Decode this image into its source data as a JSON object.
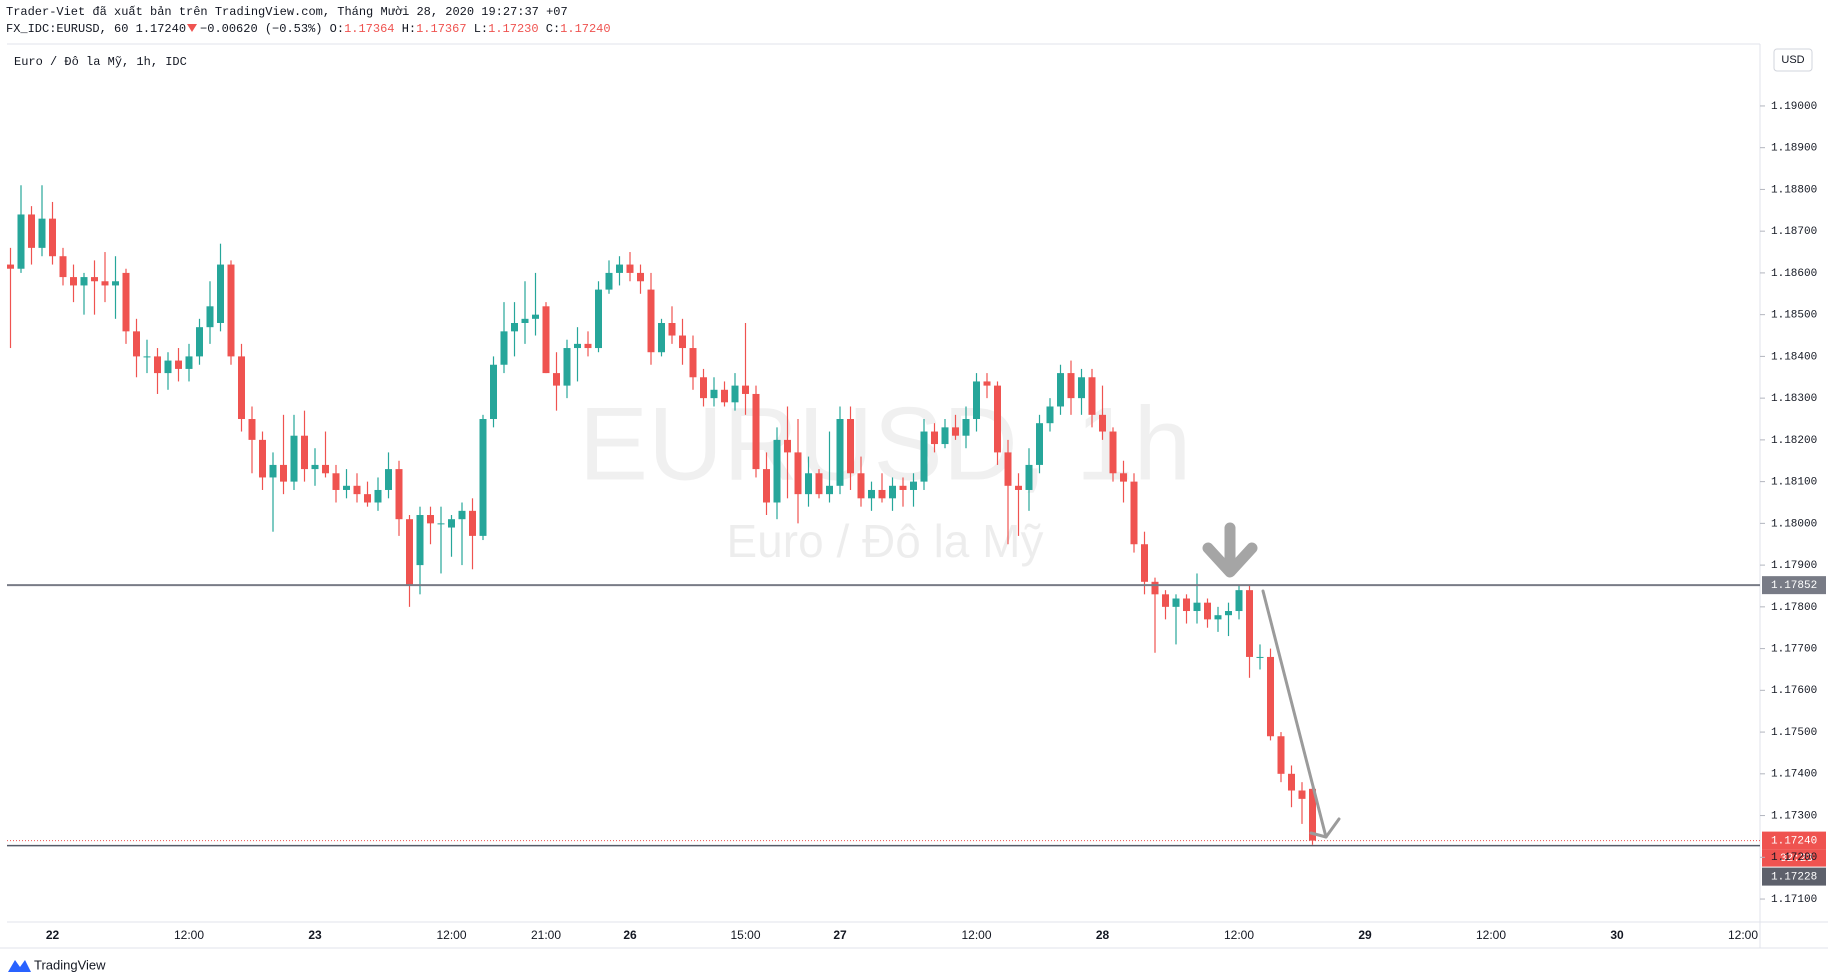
{
  "header": {
    "published": "Trader-Viet đã xuất bản trên TradingView.com, Tháng Mười 28, 2020 19:27:37 +07",
    "symbol": "FX_IDC:EURUSD, 60",
    "last": "1.17240",
    "change": "−0.00620 (−0.53%)",
    "ohlc": [
      {
        "key": "O:",
        "value": "1.17364"
      },
      {
        "key": "H:",
        "value": "1.17367"
      },
      {
        "key": "L:",
        "value": "1.17230"
      },
      {
        "key": "C:",
        "value": "1.17240"
      }
    ]
  },
  "chart_data": {
    "type": "candlestick",
    "legend": "Euro / Đô la Mỹ, 1h, IDC",
    "watermark": "EURUSD, 1h",
    "watermark_subtitle": "Euro / Đô la Mỹ",
    "currency": "USD",
    "up_color": "#26a69a",
    "down_color": "#ef5350",
    "categories": [
      null,
      null,
      null,
      null,
      "22",
      null,
      null,
      null,
      null,
      null,
      null,
      null,
      null,
      null,
      null,
      null,
      null,
      "12:00",
      null,
      null,
      null,
      null,
      null,
      null,
      null,
      null,
      null,
      null,
      null,
      "23",
      null,
      null,
      null,
      null,
      null,
      null,
      null,
      null,
      null,
      null,
      null,
      null,
      "12:00",
      null,
      null,
      null,
      null,
      null,
      null,
      null,
      null,
      "21:00",
      null,
      null,
      null,
      null,
      null,
      null,
      null,
      "26",
      null,
      null,
      null,
      null,
      null,
      null,
      null,
      null,
      null,
      null,
      "15:00",
      null,
      null,
      null,
      null,
      null,
      null,
      null,
      null,
      "27",
      null,
      null,
      null,
      null,
      null,
      null,
      null,
      null,
      null,
      null,
      null,
      null,
      "12:00",
      null,
      null,
      null,
      null,
      null,
      null,
      null,
      null,
      null,
      null,
      null,
      "28",
      null,
      null,
      null,
      null,
      null,
      null,
      null,
      null,
      null,
      null,
      null,
      null,
      "12:00",
      null,
      null,
      null,
      null,
      null,
      null,
      null,
      null,
      null,
      null,
      null,
      "29",
      null,
      null,
      null,
      null,
      null,
      null,
      null,
      null,
      null,
      null,
      null,
      "12:00",
      null,
      null,
      null,
      null,
      null,
      null,
      null,
      null,
      null,
      null,
      null,
      "30",
      null,
      null,
      null,
      null,
      null,
      null,
      null,
      null,
      null,
      null,
      null,
      "12:00",
      null
    ],
    "open": [
      1.1862,
      1.1861,
      1.1874,
      1.1866,
      1.1873,
      1.1864,
      1.1859,
      1.1857,
      1.1859,
      1.1858,
      1.1857,
      1.186,
      1.1846,
      1.184,
      1.184,
      1.1836,
      1.1839,
      1.1837,
      1.184,
      1.1847,
      1.1848,
      1.1862,
      1.184,
      1.1825,
      1.182,
      1.1811,
      1.1814,
      1.181,
      1.1821,
      1.1813,
      1.1814,
      1.1812,
      1.1808,
      1.1809,
      1.1807,
      1.1805,
      1.1808,
      1.1813,
      1.1801,
      1.179,
      1.1802,
      1.18,
      1.1799,
      1.1801,
      1.1803,
      1.1797,
      1.1825,
      1.1838,
      1.1846,
      1.1848,
      1.1849,
      1.1852,
      1.1836,
      1.1833,
      1.1842,
      1.1843,
      1.1842,
      1.1856,
      1.186,
      1.1862,
      1.186,
      1.1856,
      1.1841,
      1.1848,
      1.1845,
      1.1842,
      1.1835,
      1.183,
      1.1832,
      1.1829,
      1.1833,
      1.1831,
      1.1813,
      1.1805,
      1.182,
      1.1817,
      1.1807,
      1.1812,
      1.1807,
      1.1809,
      1.1825,
      1.1812,
      1.1806,
      1.1808,
      1.1806,
      1.1809,
      1.1808,
      1.181,
      1.1822,
      1.1819,
      1.1823,
      1.1821,
      1.1825,
      1.1834,
      1.1833,
      1.1817,
      1.1809,
      1.1808,
      1.1814,
      1.1824,
      1.1828,
      1.1836,
      1.183,
      1.1835,
      1.1826,
      1.1822,
      1.1812,
      1.181,
      1.1795,
      1.1786,
      1.1783,
      1.178,
      1.1782,
      1.1779,
      1.1781,
      1.1777,
      1.1778,
      1.1779,
      1.1784,
      1.1768,
      1.1768,
      1.1749,
      1.174,
      1.1736,
      1.17364,
      null,
      null,
      null,
      null,
      null,
      null,
      null,
      null,
      null,
      null,
      null,
      null,
      null,
      null,
      null,
      null,
      null,
      null,
      null,
      null,
      null,
      null,
      null,
      null,
      null,
      null,
      null,
      null,
      null,
      null,
      null,
      null,
      null,
      null,
      null,
      null,
      null,
      null,
      null,
      null,
      null,
      null
    ],
    "high": [
      1.1866,
      1.1881,
      1.1876,
      1.1881,
      1.1877,
      1.1866,
      1.1862,
      1.186,
      1.1863,
      1.1865,
      1.1864,
      1.1861,
      1.1849,
      1.1844,
      1.1842,
      1.1841,
      1.1842,
      1.1843,
      1.1849,
      1.1858,
      1.1867,
      1.1863,
      1.1843,
      1.1828,
      1.1822,
      1.1817,
      1.1826,
      1.1826,
      1.1827,
      1.1818,
      1.1822,
      1.1814,
      1.1813,
      1.1812,
      1.181,
      1.1811,
      1.1817,
      1.1815,
      1.1802,
      1.1804,
      1.1804,
      1.1804,
      1.1802,
      1.1805,
      1.1806,
      1.1826,
      1.184,
      1.1853,
      1.1853,
      1.1858,
      1.186,
      1.1853,
      1.1841,
      1.1844,
      1.1847,
      1.1846,
      1.1858,
      1.1863,
      1.1864,
      1.1865,
      1.1862,
      1.186,
      1.1849,
      1.1852,
      1.1849,
      1.1845,
      1.1837,
      1.1835,
      1.1834,
      1.1836,
      1.1848,
      1.1833,
      1.1817,
      1.1823,
      1.1828,
      1.1825,
      1.1816,
      1.1813,
      1.1822,
      1.1828,
      1.1828,
      1.1816,
      1.181,
      1.1812,
      1.1811,
      1.1811,
      1.1812,
      1.1825,
      1.1824,
      1.1825,
      1.1826,
      1.1828,
      1.1836,
      1.1836,
      1.1834,
      1.182,
      1.1812,
      1.1818,
      1.1826,
      1.183,
      1.1838,
      1.1839,
      1.1837,
      1.1837,
      1.1833,
      1.1823,
      1.1815,
      1.1812,
      1.1798,
      1.1787,
      1.1784,
      1.1783,
      1.1783,
      1.1788,
      1.1782,
      1.178,
      1.1781,
      1.1785,
      1.1785,
      1.1771,
      1.177,
      1.175,
      1.1742,
      1.1738,
      1.17367,
      null,
      null,
      null,
      null,
      null,
      null,
      null,
      null,
      null,
      null,
      null,
      null,
      null,
      null,
      null,
      null,
      null,
      null,
      null,
      null,
      null,
      null,
      null,
      null,
      null,
      null,
      null,
      null,
      null,
      null,
      null,
      null,
      null,
      null,
      null,
      null,
      null,
      null,
      null,
      null,
      null,
      null
    ],
    "low": [
      1.1842,
      1.186,
      1.1862,
      1.1864,
      1.1862,
      1.1857,
      1.1853,
      1.185,
      1.185,
      1.1853,
      1.1849,
      1.1843,
      1.1835,
      1.1836,
      1.1831,
      1.1832,
      1.1834,
      1.1834,
      1.1838,
      1.1843,
      1.1846,
      1.1838,
      1.1822,
      1.1812,
      1.1808,
      1.1798,
      1.1807,
      1.1808,
      1.181,
      1.1809,
      1.1811,
      1.1805,
      1.1806,
      1.1805,
      1.1804,
      1.1803,
      1.1806,
      1.1797,
      1.178,
      1.1783,
      1.1795,
      1.1788,
      1.1792,
      1.179,
      1.1789,
      1.1796,
      1.1823,
      1.1836,
      1.184,
      1.1843,
      1.1845,
      1.1836,
      1.1827,
      1.183,
      1.1834,
      1.184,
      1.1841,
      1.1855,
      1.1857,
      1.1858,
      1.1855,
      1.1838,
      1.184,
      1.1843,
      1.1838,
      1.1832,
      1.1828,
      1.1828,
      1.1828,
      1.1827,
      1.1826,
      1.1811,
      1.1802,
      1.1801,
      1.1806,
      1.18,
      1.1804,
      1.1806,
      1.1805,
      1.1807,
      1.1808,
      1.1804,
      1.1803,
      1.1805,
      1.1803,
      1.1804,
      1.1804,
      1.1808,
      1.1817,
      1.1818,
      1.182,
      1.1818,
      1.1822,
      1.183,
      1.1814,
      1.1795,
      1.1797,
      1.1803,
      1.1812,
      1.1822,
      1.1826,
      1.1826,
      1.1826,
      1.1823,
      1.182,
      1.181,
      1.1805,
      1.1793,
      1.1783,
      1.1769,
      1.1777,
      1.1771,
      1.1776,
      1.1776,
      1.1775,
      1.1774,
      1.1773,
      1.1777,
      1.1763,
      1.1765,
      1.1748,
      1.1738,
      1.1732,
      1.1728,
      1.1723,
      null,
      null,
      null,
      null,
      null,
      null,
      null,
      null,
      null,
      null,
      null,
      null,
      null,
      null,
      null,
      null,
      null,
      null,
      null,
      null,
      null,
      null,
      null,
      null,
      null,
      null,
      null,
      null,
      null,
      null,
      null,
      null,
      null,
      null,
      null,
      null,
      null,
      null,
      null,
      null,
      null,
      null
    ],
    "close": [
      1.1861,
      1.1874,
      1.1866,
      1.1873,
      1.1864,
      1.1859,
      1.1857,
      1.1859,
      1.1858,
      1.1857,
      1.1858,
      1.1846,
      1.184,
      1.184,
      1.1836,
      1.1839,
      1.1837,
      1.184,
      1.1847,
      1.1852,
      1.1862,
      1.184,
      1.1825,
      1.182,
      1.1811,
      1.1814,
      1.181,
      1.1821,
      1.1813,
      1.1814,
      1.1812,
      1.1808,
      1.1809,
      1.1807,
      1.1805,
      1.1808,
      1.1813,
      1.1801,
      1.1785,
      1.1802,
      1.18,
      1.18,
      1.1801,
      1.1803,
      1.1797,
      1.1825,
      1.1838,
      1.1846,
      1.1848,
      1.1849,
      1.185,
      1.1836,
      1.1833,
      1.1842,
      1.1843,
      1.1842,
      1.1856,
      1.186,
      1.1862,
      1.186,
      1.1858,
      1.1841,
      1.1848,
      1.1845,
      1.1842,
      1.1835,
      1.183,
      1.1832,
      1.1829,
      1.1833,
      1.1831,
      1.1813,
      1.1805,
      1.182,
      1.1817,
      1.1807,
      1.1812,
      1.1807,
      1.1809,
      1.1825,
      1.1812,
      1.1806,
      1.1808,
      1.1806,
      1.1809,
      1.1808,
      1.181,
      1.1822,
      1.1819,
      1.1823,
      1.1821,
      1.1825,
      1.1834,
      1.1833,
      1.1817,
      1.1809,
      1.1808,
      1.1814,
      1.1824,
      1.1828,
      1.1836,
      1.183,
      1.1835,
      1.1826,
      1.1822,
      1.1812,
      1.181,
      1.1795,
      1.1786,
      1.1783,
      1.178,
      1.1782,
      1.1779,
      1.1781,
      1.1777,
      1.1778,
      1.1779,
      1.1784,
      1.1768,
      1.1768,
      1.1749,
      1.174,
      1.1736,
      1.1734,
      1.1724,
      null,
      null,
      null,
      null,
      null,
      null,
      null,
      null,
      null,
      null,
      null,
      null,
      null,
      null,
      null,
      null,
      null,
      null,
      null,
      null,
      null,
      null,
      null,
      null,
      null,
      null,
      null,
      null,
      null,
      null,
      null,
      null,
      null,
      null,
      null,
      null,
      null,
      null,
      null,
      null,
      null,
      null
    ],
    "ylim": [
      1.17045,
      1.19146
    ],
    "yticks": [
      {
        "value": 1.171,
        "label": "1.17100"
      },
      {
        "value": 1.172,
        "label": "1.17200"
      },
      {
        "value": 1.173,
        "label": "1.17300"
      },
      {
        "value": 1.174,
        "label": "1.17400"
      },
      {
        "value": 1.175,
        "label": "1.17500"
      },
      {
        "value": 1.176,
        "label": "1.17600"
      },
      {
        "value": 1.177,
        "label": "1.17700"
      },
      {
        "value": 1.178,
        "label": "1.17800"
      },
      {
        "value": 1.179,
        "label": "1.17900"
      },
      {
        "value": 1.18,
        "label": "1.18000"
      },
      {
        "value": 1.181,
        "label": "1.18100"
      },
      {
        "value": 1.182,
        "label": "1.18200"
      },
      {
        "value": 1.183,
        "label": "1.18300"
      },
      {
        "value": 1.184,
        "label": "1.18400"
      },
      {
        "value": 1.185,
        "label": "1.18500"
      },
      {
        "value": 1.186,
        "label": "1.18600"
      },
      {
        "value": 1.187,
        "label": "1.18700"
      },
      {
        "value": 1.188,
        "label": "1.18800"
      },
      {
        "value": 1.189,
        "label": "1.18900"
      },
      {
        "value": 1.19,
        "label": "1.19000"
      }
    ],
    "grid": false,
    "horizontal_line": 1.17852,
    "last_price": {
      "value": 1.1724,
      "label": "1.17240"
    },
    "countdown": "32:23",
    "bid_price": 1.17228
  },
  "footer": {
    "brand": "TradingView"
  }
}
